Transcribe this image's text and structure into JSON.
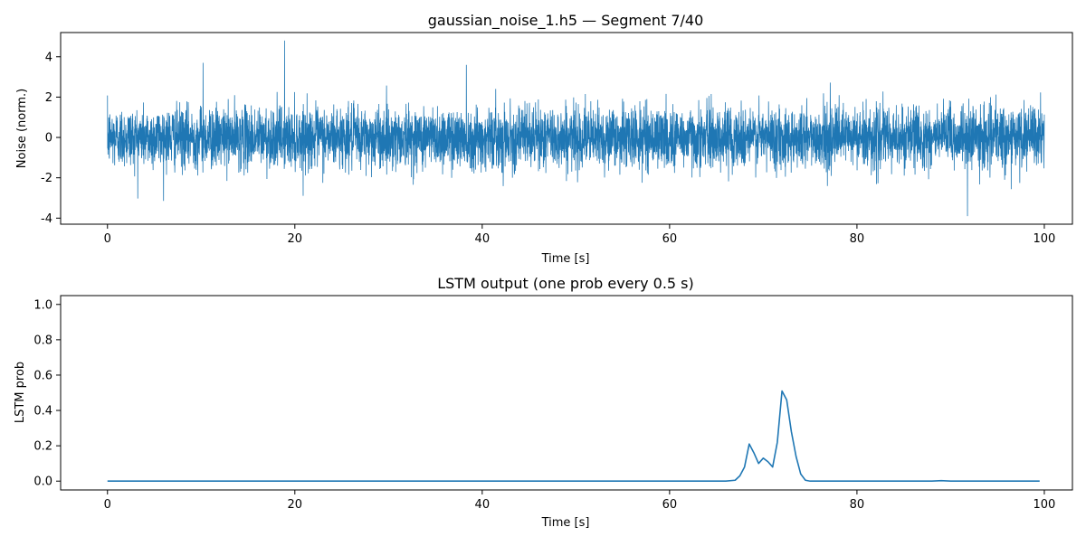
{
  "chart_data": [
    {
      "type": "line",
      "title": "gaussian_noise_1.h5 — Segment 7/40",
      "xlabel": "Time [s]",
      "ylabel": "Noise (norm.)",
      "xlim": [
        -5,
        103
      ],
      "ylim": [
        -4.3,
        5.2
      ],
      "xticks": [
        0,
        20,
        40,
        60,
        80,
        100
      ],
      "yticks": [
        -4,
        -2,
        0,
        2,
        4
      ],
      "color": "#1f77b4",
      "grid": false,
      "series": [
        {
          "x": [
            0,
            100
          ],
          "distribution": "gaussian",
          "mean": 0,
          "std": 0.75,
          "range": [
            -3.9,
            4.8
          ],
          "peaks": [
            {
              "x": 10.2,
              "y": 3.7
            },
            {
              "x": 18.9,
              "y": 4.8
            },
            {
              "x": 38.3,
              "y": 3.6
            },
            {
              "x": 91.8,
              "y": -3.9
            }
          ]
        }
      ]
    },
    {
      "type": "line",
      "title": "LSTM output (one prob every 0.5 s)",
      "xlabel": "Time [s]",
      "ylabel": "LSTM prob",
      "xlim": [
        -5,
        103
      ],
      "ylim": [
        -0.05,
        1.05
      ],
      "xticks": [
        0,
        20,
        40,
        60,
        80,
        100
      ],
      "yticks": [
        0.0,
        0.2,
        0.4,
        0.6,
        0.8,
        1.0
      ],
      "color": "#1f77b4",
      "grid": false,
      "series": [
        {
          "x": [
            0,
            60,
            66,
            67,
            67.5,
            68,
            68.5,
            69,
            69.5,
            70,
            70.5,
            71,
            71.5,
            72,
            72.5,
            73,
            73.5,
            74,
            74.5,
            75,
            76,
            80,
            88,
            89,
            90,
            99.5
          ],
          "y": [
            0.0,
            0.0,
            0.0,
            0.005,
            0.03,
            0.08,
            0.21,
            0.16,
            0.1,
            0.13,
            0.11,
            0.08,
            0.22,
            0.51,
            0.46,
            0.28,
            0.14,
            0.04,
            0.005,
            0.0,
            0.0,
            0.0,
            0.0,
            0.003,
            0.0,
            0.0
          ]
        }
      ]
    }
  ]
}
